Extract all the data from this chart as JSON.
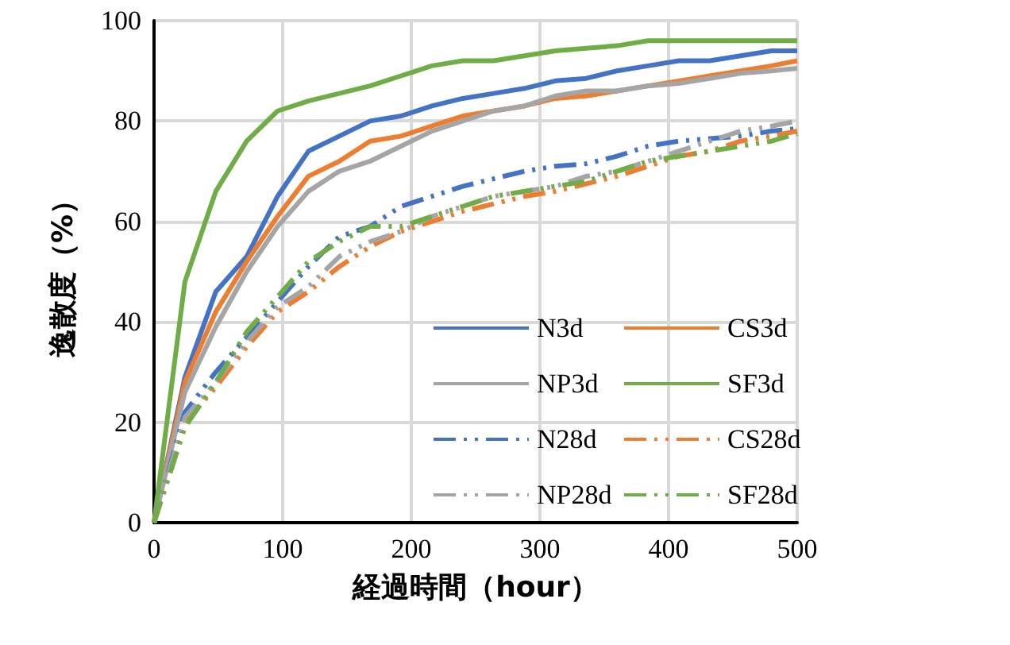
{
  "chart_data": {
    "type": "line",
    "xlabel": "経過時間（hour）",
    "ylabel": "逸散度（%）",
    "x": [
      0,
      24,
      48,
      72,
      96,
      120,
      144,
      168,
      192,
      216,
      240,
      264,
      288,
      312,
      336,
      360,
      384,
      408,
      432,
      456,
      480,
      500
    ],
    "xlim": [
      0,
      500
    ],
    "xticks": [
      0,
      100,
      200,
      300,
      400,
      500
    ],
    "ylim": [
      0,
      100
    ],
    "yticks": [
      0,
      20,
      40,
      60,
      80,
      100
    ],
    "grid": true,
    "legend": "bottom right",
    "marker": "none",
    "series": [
      {
        "name": "N3d",
        "color": "#4472c4",
        "line_style": "solid",
        "values": [
          0,
          29,
          46,
          53,
          65,
          74,
          77,
          80,
          81,
          83,
          84.5,
          85.5,
          86.5,
          88,
          88.5,
          90,
          91,
          92,
          92,
          93,
          94,
          94
        ]
      },
      {
        "name": "CS3d",
        "color": "#ed7d31",
        "line_style": "solid",
        "values": [
          0,
          28,
          42,
          52,
          61,
          69,
          72,
          76,
          77,
          79,
          81,
          82,
          83,
          84.5,
          85,
          86,
          87,
          88,
          89,
          90,
          91,
          92
        ]
      },
      {
        "name": "NP3d",
        "color": "#a5a5a5",
        "line_style": "solid",
        "values": [
          0,
          26,
          39,
          50,
          59,
          66,
          70,
          72,
          75,
          78,
          80,
          82,
          83,
          85,
          86,
          86,
          87,
          87.5,
          88.5,
          89.5,
          90,
          90.5
        ]
      },
      {
        "name": "SF3d",
        "color": "#70ad47",
        "line_style": "solid",
        "values": [
          0,
          48,
          66,
          76,
          82,
          84,
          85.5,
          87,
          89,
          91,
          92,
          92,
          93,
          94,
          94.5,
          95,
          96,
          96,
          96,
          96,
          96,
          96
        ]
      },
      {
        "name": "N28d",
        "color": "#4472c4",
        "line_style": "dashed",
        "values": [
          0,
          22,
          30,
          37,
          44,
          51,
          57,
          59,
          63,
          65,
          67,
          68.5,
          70,
          71,
          71.5,
          73,
          75,
          76,
          76.5,
          77,
          78,
          78.5
        ]
      },
      {
        "name": "CS28d",
        "color": "#ed7d31",
        "line_style": "dashed",
        "values": [
          0,
          20,
          27,
          35,
          42,
          46,
          51,
          55,
          58,
          60,
          62,
          63.5,
          65,
          66,
          67.5,
          69,
          71,
          73,
          74,
          76,
          77,
          78
        ]
      },
      {
        "name": "NP28d",
        "color": "#a5a5a5",
        "line_style": "dashed",
        "values": [
          0,
          21,
          28,
          36,
          43,
          47,
          53,
          56,
          58,
          61,
          63,
          65,
          66,
          67,
          69,
          70,
          72,
          74,
          76,
          78,
          79,
          80
        ]
      },
      {
        "name": "SF28d",
        "color": "#70ad47",
        "line_style": "dashed",
        "values": [
          0,
          19,
          28,
          38,
          45,
          52,
          56,
          59,
          59,
          61,
          63,
          65,
          66,
          67,
          68,
          70,
          72,
          73,
          74,
          75,
          76,
          77.5
        ]
      }
    ]
  }
}
